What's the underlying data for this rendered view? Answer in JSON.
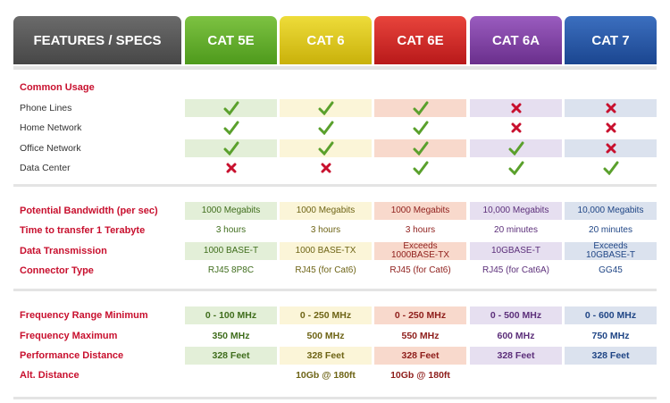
{
  "header": {
    "title": "FEATURES / SPECS",
    "columns": [
      "CAT 5E",
      "CAT 6",
      "CAT 6E",
      "CAT 6A",
      "CAT 7"
    ]
  },
  "sections": [
    {
      "title": "Common Usage",
      "rows": [
        {
          "label": "Phone Lines",
          "values": [
            true,
            true,
            true,
            false,
            false
          ]
        },
        {
          "label": "Home Network",
          "values": [
            true,
            true,
            true,
            false,
            false
          ]
        },
        {
          "label": "Office Network",
          "values": [
            true,
            true,
            true,
            true,
            false
          ]
        },
        {
          "label": "Data Center",
          "values": [
            false,
            false,
            true,
            true,
            true
          ]
        }
      ]
    },
    {
      "rows": [
        {
          "label": "Potential Bandwidth (per sec)",
          "values": [
            "1000 Megabits",
            "1000 Megabits",
            "1000 Megabits",
            "10,000 Megabits",
            "10,000 Megabits"
          ]
        },
        {
          "label": "Time to transfer 1 Terabyte",
          "values": [
            "3 hours",
            "3 hours",
            "3 hours",
            "20 minutes",
            "20 minutes"
          ]
        },
        {
          "label": "Data Transmission",
          "values": [
            "1000 BASE-T",
            "1000 BASE-TX",
            "Exceeds\n1000BASE-TX",
            "10GBASE-T",
            "Exceeds\n10GBASE-T"
          ]
        },
        {
          "label": "Connector Type",
          "values": [
            "RJ45 8P8C",
            "RJ45 (for Cat6)",
            "RJ45 (for Cat6)",
            "RJ45 (for Cat6A)",
            "GG45"
          ]
        }
      ]
    },
    {
      "rows": [
        {
          "label": "Frequency Range Minimum",
          "values": [
            "0 - 100 MHz",
            "0 - 250 MHz",
            "0 - 250 MHz",
            "0 - 500 MHz",
            "0 - 600 MHz"
          ]
        },
        {
          "label": "Frequency Maximum",
          "values": [
            "350 MHz",
            "500 MHz",
            "550 MHz",
            "600 MHz",
            "750 MHz"
          ]
        },
        {
          "label": "Performance Distance",
          "values": [
            "328 Feet",
            "328 Feet",
            "328 Feet",
            "328 Feet",
            "328 Feet"
          ]
        },
        {
          "label": "Alt. Distance",
          "values": [
            null,
            "10Gb @ 180ft",
            "10Gb @ 180ft",
            null,
            null
          ]
        }
      ]
    }
  ]
}
